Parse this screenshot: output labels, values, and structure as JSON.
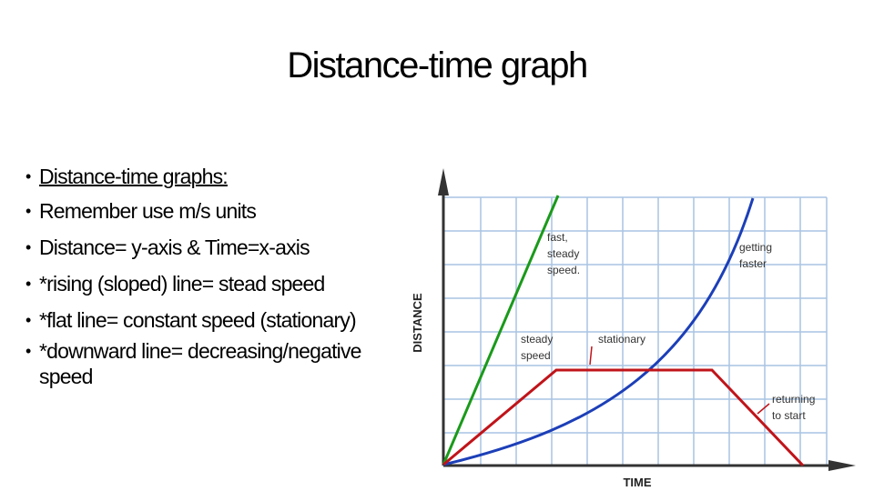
{
  "slide": {
    "title": "Distance-time graph"
  },
  "bullets": [
    "Distance-time graphs:",
    "Remember use m/s units",
    "Distance= y-axis & Time=x-axis",
    "*rising (sloped) line= stead speed",
    "*flat  line= constant speed (stationary)",
    "*downward line= decreasing/negative speed"
  ],
  "graph": {
    "y_axis_label": "DISTANCE",
    "x_axis_label": "TIME",
    "labels": {
      "fast": [
        "fast,",
        "steady",
        "speed."
      ],
      "faster": [
        "getting",
        "faster"
      ],
      "steady": [
        "steady",
        "speed"
      ],
      "stationary": "stationary",
      "returning": [
        "returning",
        "to start"
      ]
    },
    "colors": {
      "grid": "#a9c4e3",
      "axis": "#333333",
      "fast_line": "#1a9a1a",
      "faster_curve": "#1c3fb8",
      "journey_line": "#c0141a"
    }
  }
}
